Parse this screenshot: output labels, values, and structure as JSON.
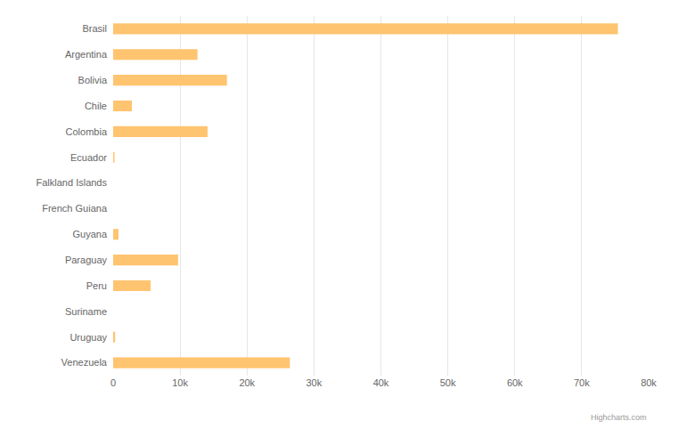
{
  "chart_data": {
    "type": "bar",
    "orientation": "horizontal",
    "categories": [
      "Brasil",
      "Argentina",
      "Bolivia",
      "Chile",
      "Colombia",
      "Ecuador",
      "Falkland Islands",
      "French Guiana",
      "Guyana",
      "Paraguay",
      "Peru",
      "Suriname",
      "Uruguay",
      "Venezuela"
    ],
    "values": [
      75400,
      12600,
      17000,
      2800,
      14100,
      200,
      0,
      0,
      800,
      9700,
      5600,
      0,
      300,
      26400
    ],
    "color": "#ffc470",
    "xlim": [
      0,
      80000
    ],
    "xticks": [
      0,
      {
        "value": 10000,
        "label": "10k"
      },
      {
        "value": 20000,
        "label": "20k"
      },
      {
        "value": 30000,
        "label": "30k"
      },
      {
        "value": 40000,
        "label": "40k"
      },
      {
        "value": 50000,
        "label": "50k"
      },
      {
        "value": 60000,
        "label": "60k"
      },
      {
        "value": 70000,
        "label": "70k"
      },
      {
        "value": 80000,
        "label": "80k"
      }
    ],
    "grid": true,
    "annotations": [
      "Highcharts.com"
    ]
  }
}
